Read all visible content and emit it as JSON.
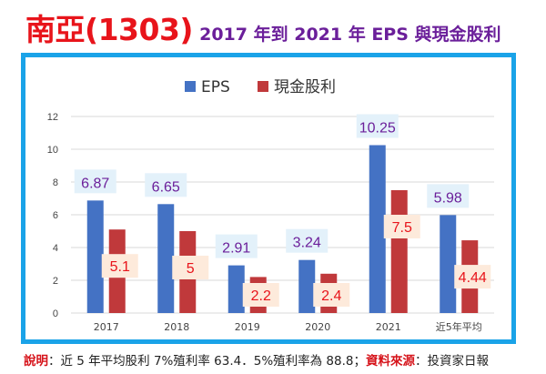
{
  "header": {
    "title": "南亞(1303)",
    "subtitle": "2017 年到 2021 年 EPS 與現金股利"
  },
  "footer": {
    "note_label": "說明",
    "note_text": "：近 5 年平均股利 7%殖利率 63.4．5%殖利率為 88.8；",
    "source_label": "資料來源",
    "source_text": "：投資家日報"
  },
  "chart_data": {
    "type": "bar",
    "categories": [
      "2017",
      "2018",
      "2019",
      "2020",
      "2021",
      "近5年平均"
    ],
    "series": [
      {
        "name": "EPS",
        "values": [
          6.87,
          6.65,
          2.91,
          3.24,
          10.25,
          5.98
        ],
        "color": "#4472c4",
        "label_color": "#6b1f9a"
      },
      {
        "name": "現金股利",
        "values": [
          5.1,
          5,
          2.2,
          2.4,
          7.5,
          4.44
        ],
        "color": "#c0393b",
        "label_color": "#e8141b"
      }
    ],
    "y_ticks": [
      "0",
      "2",
      "4",
      "6",
      "8",
      "10",
      "12"
    ],
    "ylim": [
      0,
      12
    ],
    "grid": true,
    "legend": "top-center",
    "title": "",
    "xlabel": "",
    "ylabel": ""
  }
}
